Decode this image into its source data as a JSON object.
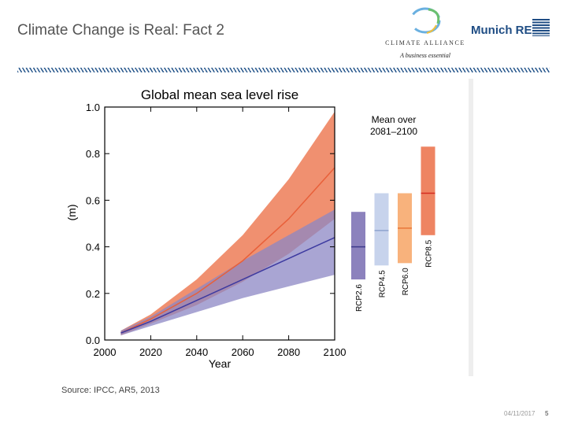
{
  "slide": {
    "title": "Climate Change is Real: Fact 2",
    "source": "Source: IPCC, AR5, 2013",
    "date": "04/11/2017",
    "page": "5"
  },
  "logos": {
    "climate_alliance": "CLIMATE ALLIANCE",
    "climate_alliance_tagline": "A business essential",
    "munich_re": "Munich RE"
  },
  "chart_data": {
    "type": "area",
    "title": "Global mean sea level rise",
    "xlabel": "Year",
    "ylabel": "(m)",
    "xlim": [
      2000,
      2100
    ],
    "ylim": [
      0,
      1.0
    ],
    "xticks": [
      "2000",
      "2020",
      "2040",
      "2060",
      "2080",
      "2100"
    ],
    "yticks": [
      "0.0",
      "0.2",
      "0.4",
      "0.6",
      "0.8",
      "1.0"
    ],
    "x": [
      2007,
      2020,
      2040,
      2060,
      2080,
      2100
    ],
    "series": [
      {
        "name": "RCP8.5",
        "color": "#e8603a",
        "band_color": "#ef8a68",
        "mean": [
          0.03,
          0.09,
          0.2,
          0.34,
          0.52,
          0.74
        ],
        "lower": [
          0.02,
          0.07,
          0.15,
          0.25,
          0.37,
          0.52
        ],
        "upper": [
          0.04,
          0.11,
          0.26,
          0.45,
          0.69,
          0.98
        ]
      },
      {
        "name": "RCP2.6",
        "color": "#3d3aa0",
        "band_color": "#8c87c4",
        "mean": [
          0.03,
          0.08,
          0.17,
          0.26,
          0.35,
          0.44
        ],
        "lower": [
          0.02,
          0.06,
          0.12,
          0.18,
          0.23,
          0.28
        ],
        "upper": [
          0.04,
          0.1,
          0.22,
          0.34,
          0.45,
          0.56
        ]
      }
    ],
    "inset": {
      "title_line1": "Mean over",
      "title_line2": "2081–2100",
      "bars": [
        {
          "name": "RCP2.6",
          "low": 0.26,
          "mean": 0.4,
          "high": 0.55,
          "color": "#8c82bd",
          "line": "#3d3a8c"
        },
        {
          "name": "RCP4.5",
          "low": 0.32,
          "mean": 0.47,
          "high": 0.63,
          "color": "#c7d3ec",
          "line": "#8ea3cf"
        },
        {
          "name": "RCP6.0",
          "low": 0.33,
          "mean": 0.48,
          "high": 0.63,
          "color": "#f8b27c",
          "line": "#e8763a"
        },
        {
          "name": "RCP8.5",
          "low": 0.45,
          "mean": 0.63,
          "high": 0.83,
          "color": "#ee8462",
          "line": "#d52c20"
        }
      ]
    }
  }
}
